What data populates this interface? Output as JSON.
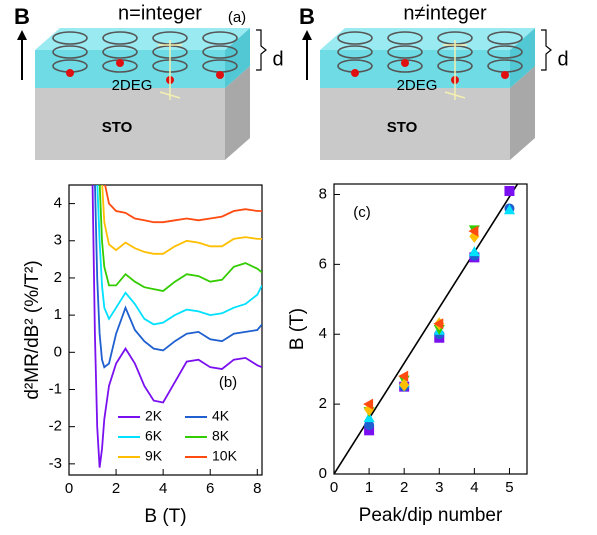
{
  "diagrams": [
    {
      "field_label": "B",
      "title": "n=integer",
      "panel": "(a)",
      "thickness": "d",
      "layer": "2DEG",
      "substrate": "STO"
    },
    {
      "field_label": "B",
      "title": "n≠integer",
      "thickness": "d",
      "layer": "2DEG",
      "substrate": "STO"
    }
  ],
  "chart_data": [
    {
      "type": "line",
      "panel": "(b)",
      "x_label": "B (T)",
      "y_label": "d²MR/dB² (%/T²)",
      "xlim": [
        0,
        8.2
      ],
      "xticks": [
        0,
        2,
        4,
        6,
        8
      ],
      "ylim": [
        -3.3,
        4.5
      ],
      "yticks": [
        -3,
        -2,
        -1,
        0,
        1,
        2,
        3,
        4
      ],
      "legend": "lower right",
      "x": [
        1.0,
        1.1,
        1.2,
        1.3,
        1.4,
        1.5,
        1.7,
        2.0,
        2.4,
        2.8,
        3.2,
        3.6,
        4.0,
        4.5,
        5.0,
        5.5,
        6.0,
        6.5,
        7.0,
        7.5,
        8.0,
        8.2
      ],
      "series": [
        {
          "name": "2K",
          "color": "#7a10f0",
          "values": [
            4.6,
            0.5,
            -2.0,
            -3.1,
            -2.6,
            -1.8,
            -0.9,
            -0.3,
            0.1,
            -0.3,
            -0.9,
            -1.3,
            -1.35,
            -0.8,
            -0.25,
            -0.2,
            -0.4,
            -0.45,
            -0.2,
            -0.15,
            -0.35,
            -0.4
          ]
        },
        {
          "name": "4K",
          "color": "#1f5fd0",
          "values": [
            null,
            4.6,
            2.0,
            0.5,
            -0.2,
            -0.4,
            -0.3,
            0.5,
            1.2,
            0.6,
            0.3,
            0.1,
            0.05,
            0.3,
            0.5,
            0.55,
            0.35,
            0.3,
            0.5,
            0.55,
            0.6,
            0.75
          ]
        },
        {
          "name": "6K",
          "color": "#00e0ff",
          "values": [
            null,
            null,
            4.6,
            3.0,
            1.8,
            1.2,
            0.9,
            1.2,
            1.6,
            1.3,
            0.9,
            0.75,
            0.8,
            1.0,
            1.15,
            1.1,
            1.0,
            1.05,
            1.2,
            1.3,
            1.55,
            1.8
          ]
        },
        {
          "name": "8K",
          "color": "#33cc00",
          "values": [
            null,
            null,
            null,
            4.6,
            3.0,
            2.3,
            1.8,
            1.8,
            2.1,
            1.9,
            1.75,
            1.7,
            1.65,
            1.9,
            2.1,
            2.05,
            1.9,
            1.95,
            2.3,
            2.4,
            2.25,
            2.15
          ]
        },
        {
          "name": "9K",
          "color": "#ffbf00",
          "values": [
            null,
            null,
            null,
            null,
            4.6,
            3.5,
            2.9,
            2.75,
            2.95,
            2.8,
            2.7,
            2.65,
            2.65,
            2.85,
            3.0,
            2.95,
            2.85,
            2.85,
            3.05,
            3.1,
            3.05,
            3.05
          ]
        },
        {
          "name": "10K",
          "color": "#ff4a10",
          "values": [
            null,
            null,
            null,
            null,
            null,
            4.6,
            4.0,
            3.8,
            3.75,
            3.6,
            3.55,
            3.5,
            3.5,
            3.55,
            3.6,
            3.55,
            3.6,
            3.65,
            3.8,
            3.85,
            3.8,
            3.8
          ]
        }
      ]
    },
    {
      "type": "scatter",
      "panel": "(c)",
      "x_label": "Peak/dip number",
      "y_label": "B (T)",
      "xlim": [
        0,
        5.5
      ],
      "xticks": [
        0,
        1,
        2,
        3,
        4,
        5
      ],
      "ylim": [
        0,
        8.3
      ],
      "yticks": [
        0,
        2,
        4,
        6,
        8
      ],
      "x": [
        1,
        2,
        3,
        4,
        5
      ],
      "fit_line": {
        "x": [
          0,
          5.23
        ],
        "y": [
          0,
          8.3
        ],
        "color": "#000000"
      },
      "series": [
        {
          "marker": "square",
          "color": "#7a10f0",
          "values": [
            1.25,
            2.5,
            3.9,
            6.2,
            8.1
          ]
        },
        {
          "marker": "circle",
          "color": "#1f5fd0",
          "values": [
            1.4,
            2.5,
            4.0,
            6.25,
            7.6
          ]
        },
        {
          "marker": "triangle-up",
          "color": "#00e0ff",
          "values": [
            1.6,
            2.6,
            4.1,
            6.35,
            7.55
          ]
        },
        {
          "marker": "triangle-down",
          "color": "#33cc00",
          "values": [
            1.8,
            2.7,
            4.15,
            7.0,
            null
          ]
        },
        {
          "marker": "diamond",
          "color": "#ffbf00",
          "values": [
            1.85,
            2.55,
            4.3,
            6.8,
            null
          ]
        },
        {
          "marker": "triangle-left",
          "color": "#ff4a10",
          "values": [
            2.0,
            2.8,
            4.3,
            6.95,
            null
          ]
        }
      ]
    }
  ]
}
